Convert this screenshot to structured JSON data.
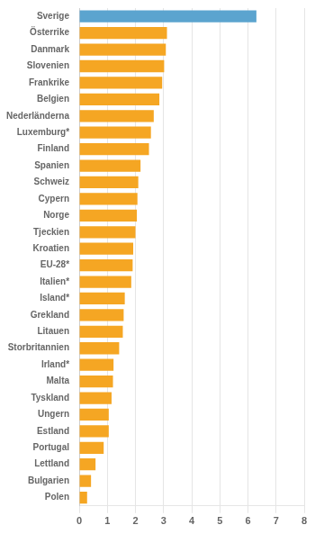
{
  "chart_data": {
    "type": "bar",
    "orientation": "horizontal",
    "categories": [
      "Polen",
      "Bulgarien",
      "Lettland",
      "Portugal",
      "Estland",
      "Ungern",
      "Tyskland",
      "Malta",
      "Irland*",
      "Storbritannien",
      "Litauen",
      "Grekland",
      "Island*",
      "Italien*",
      "EU-28*",
      "Kroatien",
      "Tjeckien",
      "Norge",
      "Cypern",
      "Schweiz",
      "Spanien",
      "Finland",
      "Luxemburg*",
      "Nederländerna",
      "Belgien",
      "Frankrike",
      "Slovenien",
      "Danmark",
      "Österrike",
      "Sverige"
    ],
    "values": [
      0.28,
      0.42,
      0.58,
      0.87,
      1.05,
      1.05,
      1.15,
      1.2,
      1.22,
      1.42,
      1.55,
      1.58,
      1.62,
      1.85,
      1.9,
      1.92,
      2.0,
      2.05,
      2.07,
      2.1,
      2.18,
      2.48,
      2.55,
      2.65,
      2.85,
      2.95,
      3.02,
      3.08,
      3.12,
      6.3
    ],
    "colors": [
      "#F5A623",
      "#F5A623",
      "#F5A623",
      "#F5A623",
      "#F5A623",
      "#F5A623",
      "#F5A623",
      "#F5A623",
      "#F5A623",
      "#F5A623",
      "#F5A623",
      "#F5A623",
      "#F5A623",
      "#F5A623",
      "#F5A623",
      "#F5A623",
      "#F5A623",
      "#F5A623",
      "#F5A623",
      "#F5A623",
      "#F5A623",
      "#F5A623",
      "#F5A623",
      "#F5A623",
      "#F5A623",
      "#F5A623",
      "#F5A623",
      "#F5A623",
      "#F5A623",
      "#5BA4CF"
    ],
    "xlim": [
      0,
      8
    ],
    "xticks": [
      0,
      1,
      2,
      3,
      4,
      5,
      6,
      7,
      8
    ],
    "grid": true
  }
}
